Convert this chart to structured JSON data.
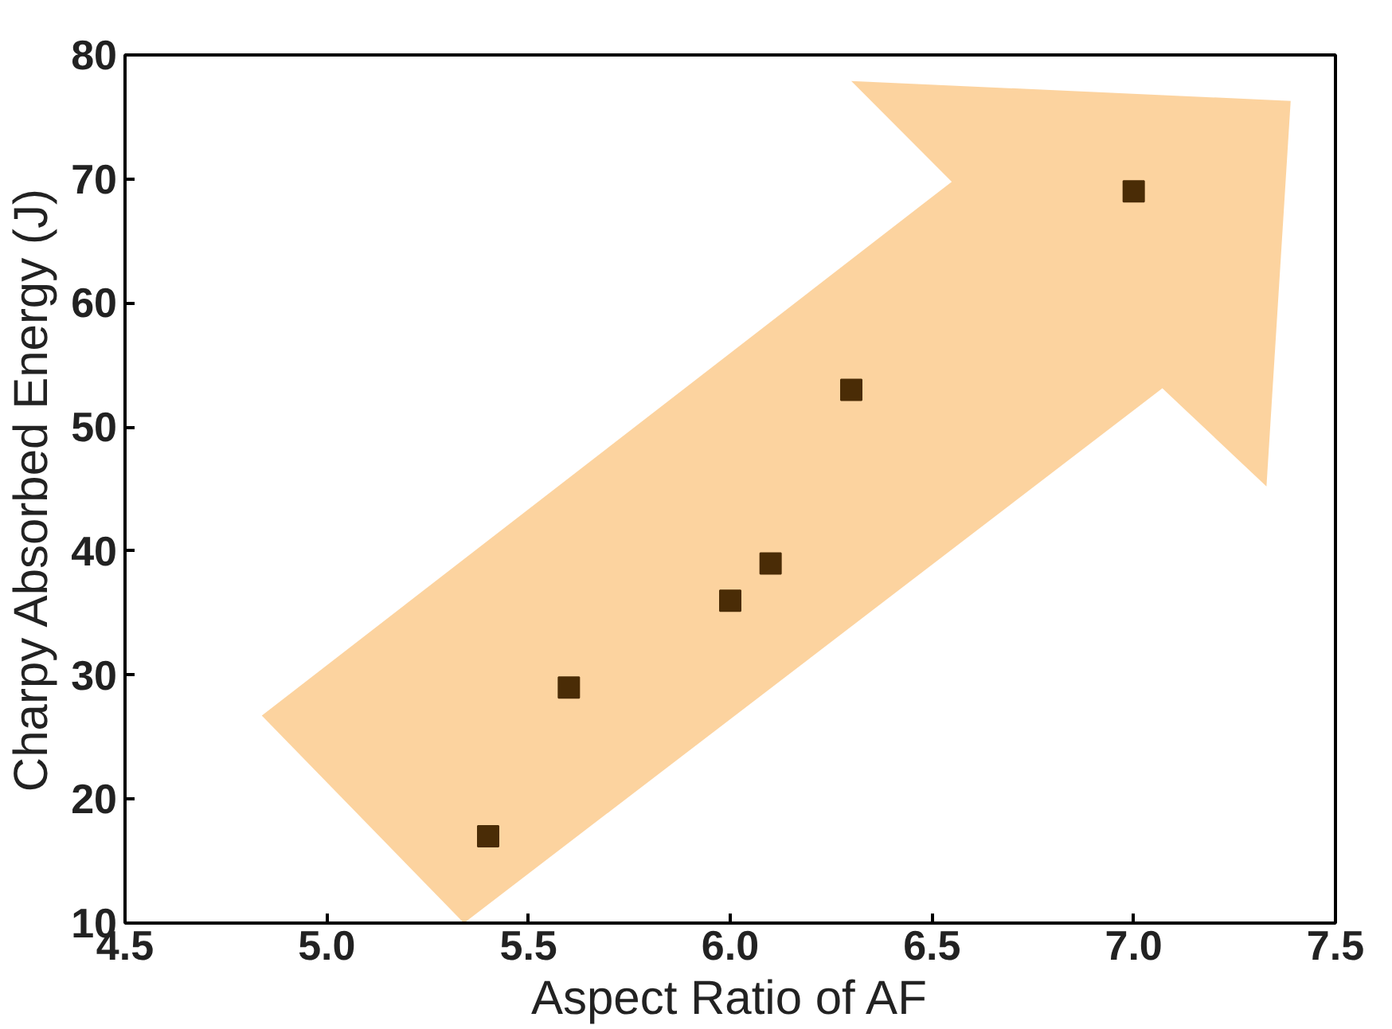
{
  "chart_data": {
    "type": "scatter",
    "xlabel": "Aspect Ratio of AF",
    "ylabel": "Charpy Absorbed Energy (J)",
    "x": [
      5.4,
      5.6,
      6.0,
      6.1,
      6.3,
      7.0
    ],
    "values": [
      17,
      29,
      36,
      39,
      53,
      69
    ],
    "color": "#4a2c06",
    "marker": "square",
    "xlim": [
      4.5,
      7.5
    ],
    "xticks": [
      {
        "value": 4.5,
        "label": "4.5"
      },
      {
        "value": 5.0,
        "label": "5.0"
      },
      {
        "value": 5.5,
        "label": "5.5"
      },
      {
        "value": 6.0,
        "label": "6.0"
      },
      {
        "value": 6.5,
        "label": "6.5"
      },
      {
        "value": 7.0,
        "label": "7.0"
      },
      {
        "value": 7.5,
        "label": "7.5"
      }
    ],
    "ylim": [
      10,
      80
    ],
    "yticks": [
      10,
      20,
      30,
      40,
      50,
      60,
      70,
      80
    ],
    "grid": false
  }
}
